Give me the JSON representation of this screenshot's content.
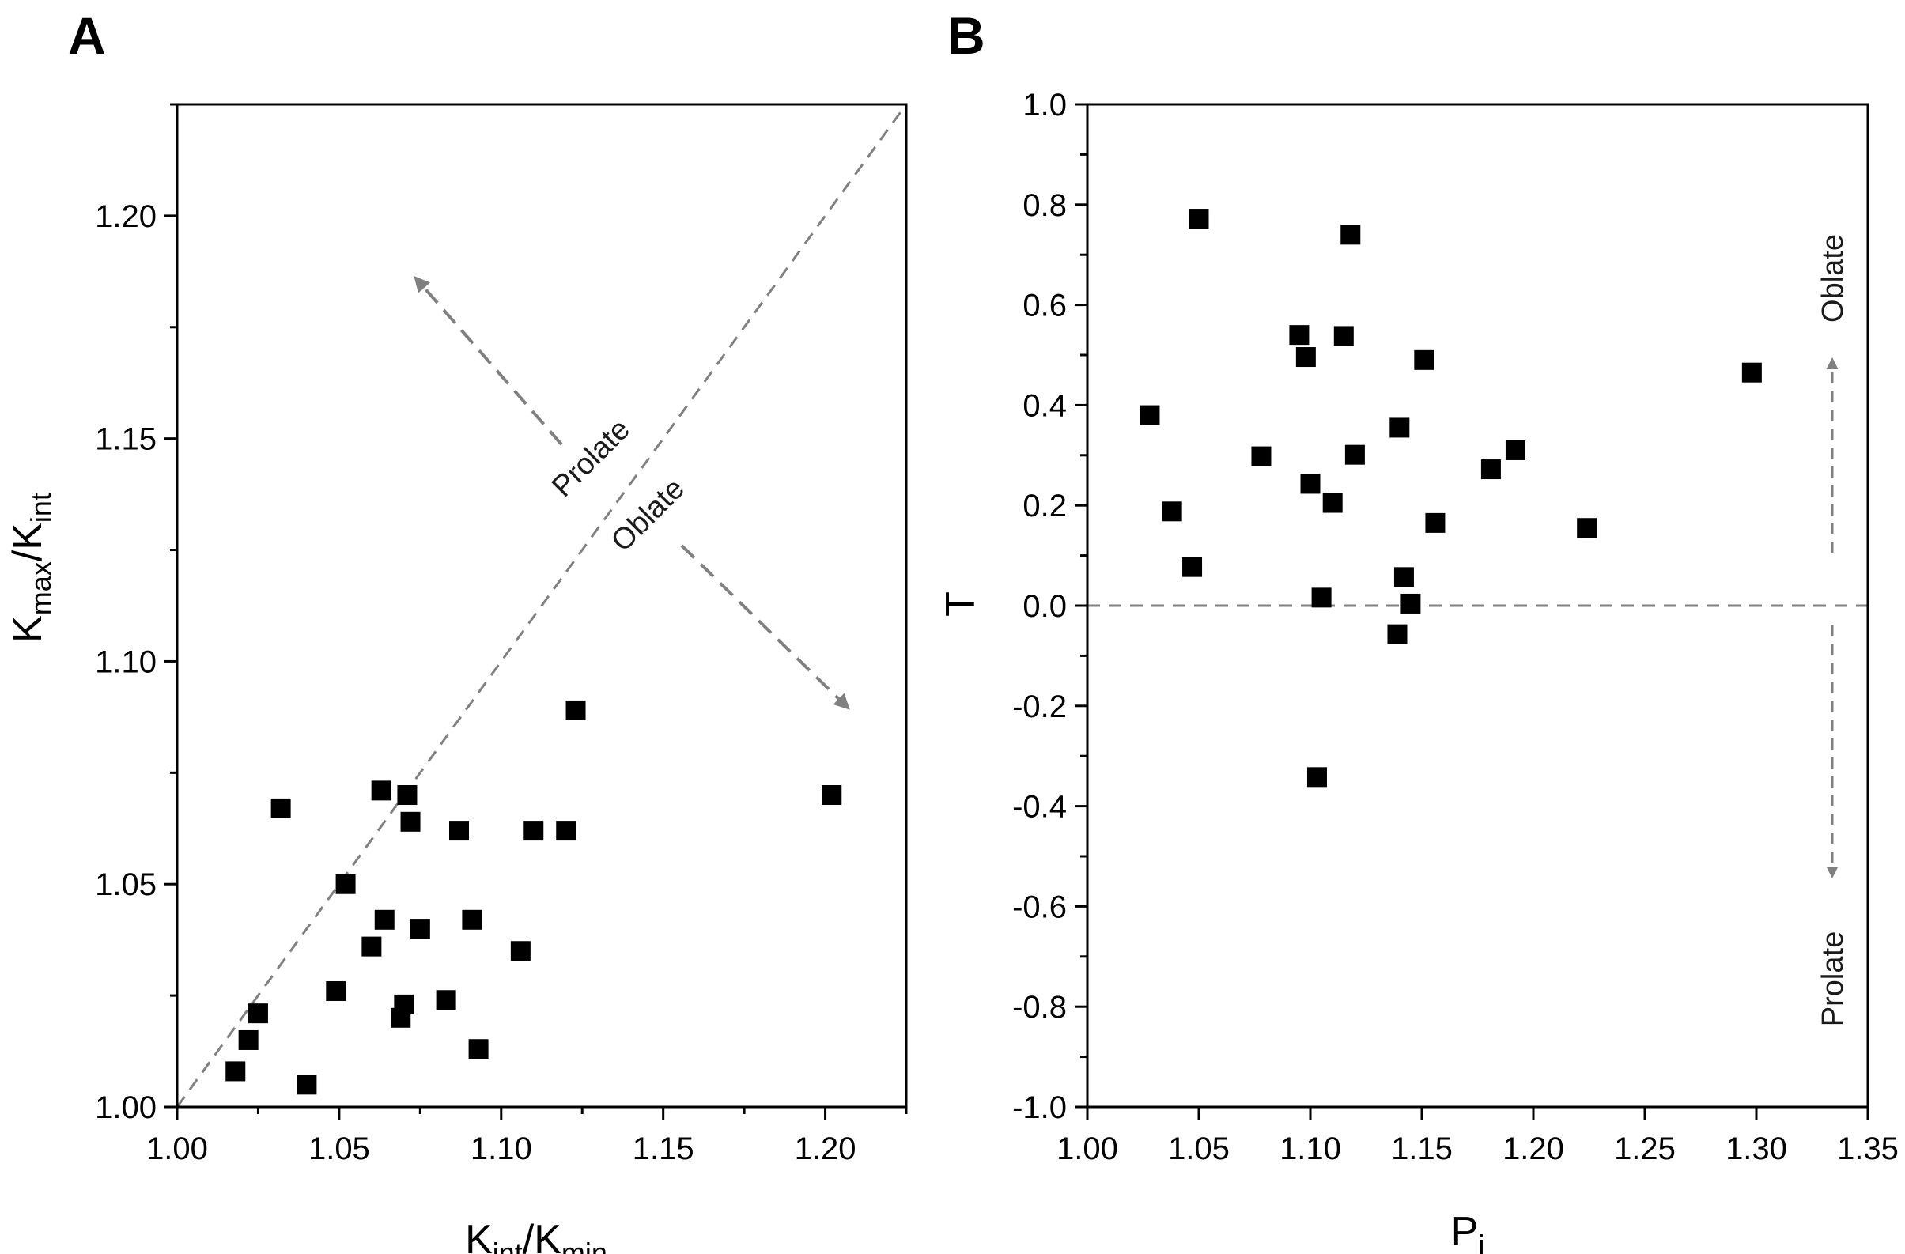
{
  "colors": {
    "marker": "#000000",
    "dashed_line": "#808080",
    "arrow": "#808080",
    "axes": "#000000"
  },
  "chart_data": [
    {
      "panel": "A",
      "type": "scatter",
      "title": "",
      "xlabel": {
        "main": "K",
        "sub1": "int",
        "sep": "/K",
        "sub2": "min"
      },
      "ylabel": {
        "main": "K",
        "sub1": "max",
        "sep": "/K",
        "sub2": "int"
      },
      "xlim": [
        1.0,
        1.225
      ],
      "ylim": [
        1.0,
        1.225
      ],
      "xticks": [
        1.0,
        1.05,
        1.1,
        1.15,
        1.2
      ],
      "xtick_labels": [
        "1.00",
        "1.05",
        "1.10",
        "1.15",
        "1.20"
      ],
      "yticks": [
        1.0,
        1.05,
        1.1,
        1.15,
        1.2
      ],
      "ytick_labels": [
        "1.00",
        "1.05",
        "1.10",
        "1.15",
        "1.20"
      ],
      "reference_line": {
        "style": "dashed",
        "from": [
          1.0,
          1.0
        ],
        "to": [
          1.225,
          1.225
        ]
      },
      "annotations": [
        {
          "text": "Prolate",
          "direction": "upper-left"
        },
        {
          "text": "Oblate",
          "direction": "lower-right"
        }
      ],
      "marker": "square",
      "points": [
        [
          1.018,
          1.008
        ],
        [
          1.022,
          1.015
        ],
        [
          1.025,
          1.021
        ],
        [
          1.032,
          1.067
        ],
        [
          1.04,
          1.005
        ],
        [
          1.049,
          1.026
        ],
        [
          1.052,
          1.05
        ],
        [
          1.06,
          1.036
        ],
        [
          1.063,
          1.071
        ],
        [
          1.064,
          1.042
        ],
        [
          1.069,
          1.02
        ],
        [
          1.07,
          1.023
        ],
        [
          1.071,
          1.07
        ],
        [
          1.072,
          1.064
        ],
        [
          1.075,
          1.04
        ],
        [
          1.083,
          1.024
        ],
        [
          1.087,
          1.062
        ],
        [
          1.091,
          1.042
        ],
        [
          1.093,
          1.013
        ],
        [
          1.106,
          1.035
        ],
        [
          1.11,
          1.062
        ],
        [
          1.12,
          1.062
        ],
        [
          1.123,
          1.089
        ],
        [
          1.202,
          1.07
        ]
      ]
    },
    {
      "panel": "B",
      "type": "scatter",
      "title": "",
      "xlabel": {
        "main": "P",
        "sub1": "j"
      },
      "ylabel": {
        "main": "T"
      },
      "xlim": [
        1.0,
        1.35
      ],
      "ylim": [
        -1.0,
        1.0
      ],
      "xticks": [
        1.0,
        1.05,
        1.1,
        1.15,
        1.2,
        1.25,
        1.3,
        1.35
      ],
      "xtick_labels": [
        "1.00",
        "1.05",
        "1.10",
        "1.15",
        "1.20",
        "1.25",
        "1.30",
        "1.35"
      ],
      "yticks": [
        -1.0,
        -0.8,
        -0.6,
        -0.4,
        -0.2,
        0.0,
        0.2,
        0.4,
        0.6,
        0.8,
        1.0
      ],
      "ytick_labels": [
        "-1.0",
        "-0.8",
        "-0.6",
        "-0.4",
        "-0.2",
        "0.0",
        "0.2",
        "0.4",
        "0.6",
        "0.8",
        "1.0"
      ],
      "reference_line": {
        "style": "dashed",
        "from": [
          1.0,
          0.0
        ],
        "to": [
          1.35,
          0.0
        ]
      },
      "annotations": [
        {
          "text": "Oblate",
          "direction": "up"
        },
        {
          "text": "Prolate",
          "direction": "down"
        }
      ],
      "marker": "square",
      "points": [
        [
          1.028,
          0.38
        ],
        [
          1.038,
          0.188
        ],
        [
          1.047,
          0.077
        ],
        [
          1.05,
          0.772
        ],
        [
          1.078,
          0.298
        ],
        [
          1.095,
          0.54
        ],
        [
          1.098,
          0.496
        ],
        [
          1.1,
          0.243
        ],
        [
          1.103,
          -0.342
        ],
        [
          1.105,
          0.016
        ],
        [
          1.11,
          0.205
        ],
        [
          1.115,
          0.538
        ],
        [
          1.118,
          0.74
        ],
        [
          1.12,
          0.301
        ],
        [
          1.139,
          -0.057
        ],
        [
          1.14,
          0.355
        ],
        [
          1.142,
          0.057
        ],
        [
          1.145,
          0.004
        ],
        [
          1.151,
          0.49
        ],
        [
          1.156,
          0.165
        ],
        [
          1.181,
          0.272
        ],
        [
          1.192,
          0.31
        ],
        [
          1.224,
          0.155
        ],
        [
          1.298,
          0.465
        ]
      ]
    }
  ]
}
